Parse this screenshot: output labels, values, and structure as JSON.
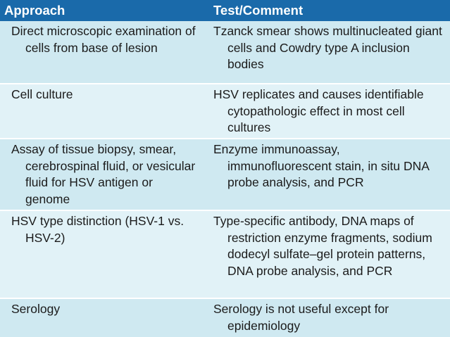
{
  "header": {
    "approach": "Approach",
    "comment": "Test/Comment"
  },
  "rows": [
    {
      "approach": "Direct microscopic examination of cells from base of lesion",
      "comment": "Tzanck smear shows multinucleated giant cells and Cowdry type A inclusion bodies"
    },
    {
      "approach": "Cell culture",
      "comment": "HSV replicates and causes identifiable cytopathologic effect in most cell cultures"
    },
    {
      "approach": "Assay of tissue biopsy, smear, cerebrospinal fluid, or vesicular fluid for HSV antigen or genome",
      "comment": "Enzyme immunoassay, immunofluorescent stain, in situ DNA probe analysis, and PCR"
    },
    {
      "approach": "HSV type distinction (HSV-1 vs. HSV-2)",
      "comment": "Type-specific antibody, DNA maps of restriction enzyme fragments, sodium dodecyl sulfate–gel protein patterns, DNA probe analysis, and PCR"
    },
    {
      "approach": "Serology",
      "comment": "Serology is not useful except for epidemiology"
    }
  ],
  "colors": {
    "header_bg": "#1a6aaa",
    "row_shade_1": "#cfe9f1",
    "row_shade_2": "#e1f2f7"
  }
}
